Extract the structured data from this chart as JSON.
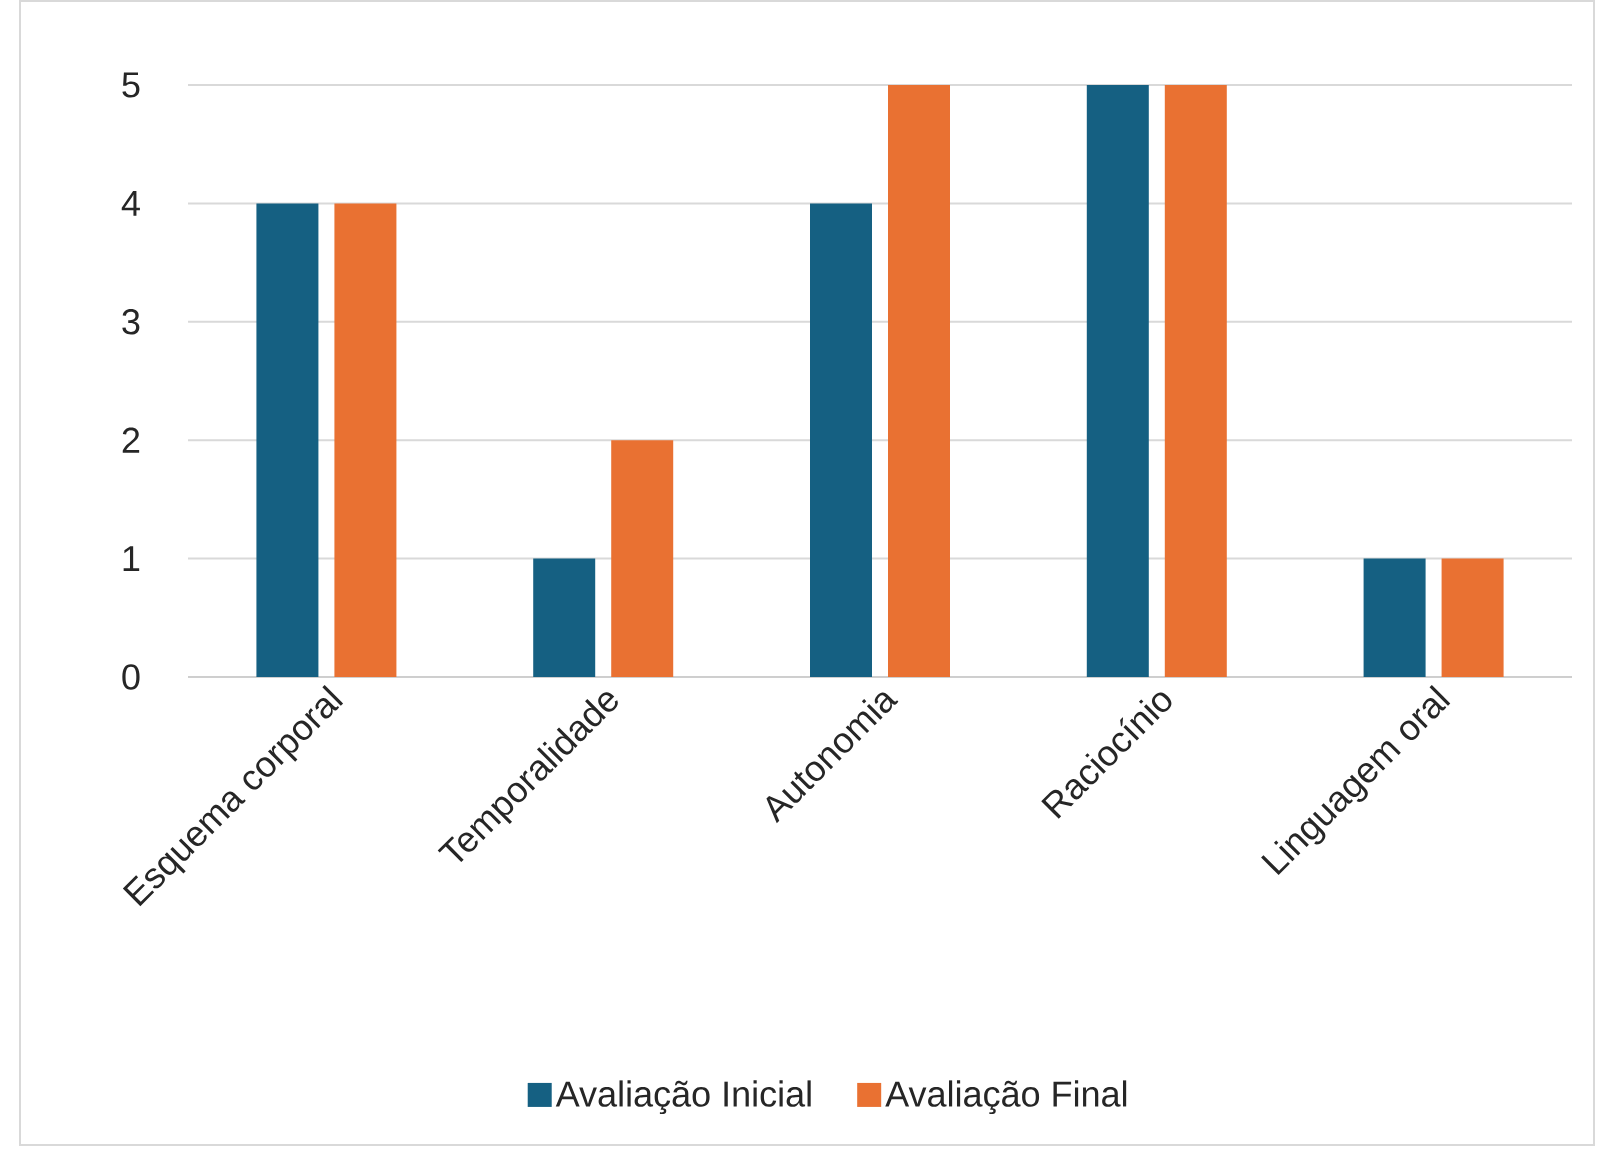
{
  "chart_data": {
    "type": "bar",
    "categories": [
      "Esquema corporal",
      "Temporalidade",
      "Autonomia",
      "Raciocínio",
      "Linguagem oral"
    ],
    "series": [
      {
        "name": "Avaliação Inicial",
        "color": "#156082",
        "values": [
          4,
          1,
          4,
          5,
          1
        ]
      },
      {
        "name": "Avaliação Final",
        "color": "#e97132",
        "values": [
          4,
          2,
          5,
          5,
          1
        ]
      }
    ],
    "ylim": [
      0,
      5
    ],
    "yticks": [
      0,
      1,
      2,
      3,
      4,
      5
    ],
    "grid": "y",
    "legend": "bottom"
  }
}
